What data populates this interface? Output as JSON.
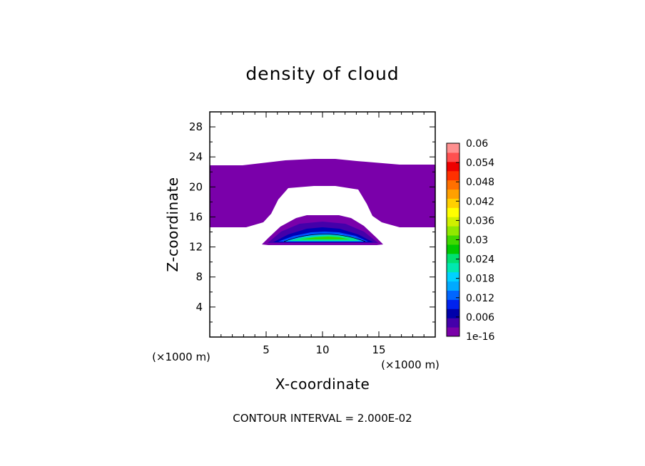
{
  "chart_data": {
    "type": "heatmap",
    "title": "density of cloud",
    "xlabel": "X-coordinate",
    "ylabel": "Z-coordinate",
    "x_unit": "(×1000 m)",
    "y_unit": "(×1000 m)",
    "xlim": [
      0,
      20
    ],
    "ylim": [
      0,
      30
    ],
    "x_ticks": [
      5,
      10,
      15
    ],
    "y_ticks": [
      4,
      8,
      12,
      16,
      20,
      24,
      28
    ],
    "x_tick_labels": [
      "5",
      "10",
      "15"
    ],
    "y_tick_labels": [
      "4",
      "8",
      "12",
      "16",
      "20",
      "24",
      "28"
    ],
    "contour_interval_text": "CONTOUR INTERVAL = 2.000E-02",
    "colorbar": {
      "labels": [
        "1e-16",
        "0.006",
        "0.012",
        "0.018",
        "0.024",
        "0.03",
        "0.036",
        "0.042",
        "0.048",
        "0.054",
        "0.06"
      ],
      "colors": [
        "#7a00a8",
        "#4400aa",
        "#0000aa",
        "#0022ee",
        "#0066ff",
        "#00aaff",
        "#00d2ff",
        "#00e8b0",
        "#00e070",
        "#00c800",
        "#40d800",
        "#90e800",
        "#d0f000",
        "#ffff00",
        "#ffd000",
        "#ffa000",
        "#ff7000",
        "#ff3000",
        "#ee0000",
        "#ff5050",
        "#ff9090"
      ]
    },
    "regions": {
      "upper_cloud": {
        "z_bottom_outer": 14.5,
        "z_top": 23.2,
        "clear_core_x": [
          5,
          15
        ],
        "clear_core_z": [
          16.5,
          20
        ],
        "density": 1e-16
      },
      "core_cloud": {
        "x": [
          4.5,
          15.5
        ],
        "z": [
          12.3,
          16.2
        ],
        "max_density": 0.036,
        "max_at": [
          10,
          13.3
        ]
      }
    }
  }
}
